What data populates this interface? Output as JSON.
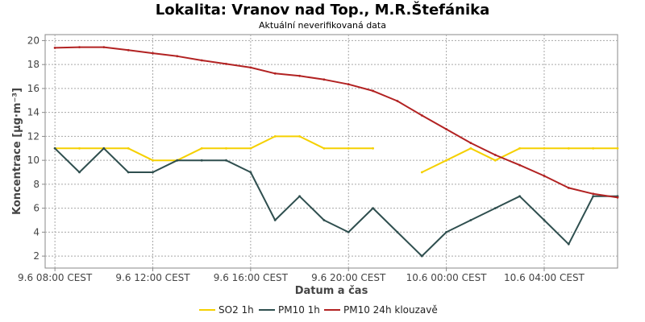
{
  "chart_data": {
    "type": "line",
    "title": "Lokalita: Vranov nad Top., M.R.Štefánika",
    "subtitle": "Aktuální neverifikovaná data",
    "xlabel": "Datum a čas",
    "ylabel": "Koncentrace [µg·m⁻³]",
    "ylim": [
      1,
      20.5
    ],
    "yticks": [
      2,
      4,
      6,
      8,
      10,
      12,
      14,
      16,
      18,
      20
    ],
    "xlim": [
      7.6,
      31.0
    ],
    "xticks": [
      {
        "x": 8,
        "label": "9.6 08:00 CEST"
      },
      {
        "x": 12,
        "label": "9.6 12:00 CEST"
      },
      {
        "x": 16,
        "label": "9.6 16:00 CEST"
      },
      {
        "x": 20,
        "label": "9.6 20:00 CEST"
      },
      {
        "x": 24,
        "label": "10.6 00:00 CEST"
      },
      {
        "x": 28,
        "label": "10.6 04:00 CEST"
      }
    ],
    "grid": true,
    "legend_position": "bottom",
    "series": [
      {
        "name": "SO2 1h",
        "color": "#f5d000",
        "points": [
          [
            8,
            11
          ],
          [
            9,
            11
          ],
          [
            10,
            11
          ],
          [
            11,
            11
          ],
          [
            12,
            10
          ],
          [
            13,
            10
          ],
          [
            14,
            11
          ],
          [
            15,
            11
          ],
          [
            16,
            11
          ],
          [
            17,
            12
          ],
          [
            18,
            12
          ],
          [
            19,
            11
          ],
          [
            20,
            11
          ],
          [
            21,
            11
          ],
          [
            22,
            null
          ],
          [
            23,
            9
          ],
          [
            24,
            10
          ],
          [
            25,
            11
          ],
          [
            26,
            10
          ],
          [
            27,
            11
          ],
          [
            28,
            11
          ],
          [
            29,
            11
          ],
          [
            30,
            11
          ],
          [
            31,
            11
          ]
        ]
      },
      {
        "name": "PM10 1h",
        "color": "#2f4f4f",
        "points": [
          [
            8,
            11
          ],
          [
            9,
            9
          ],
          [
            10,
            11
          ],
          [
            11,
            9
          ],
          [
            12,
            9
          ],
          [
            13,
            10
          ],
          [
            14,
            10
          ],
          [
            15,
            10
          ],
          [
            16,
            9
          ],
          [
            17,
            5
          ],
          [
            18,
            7
          ],
          [
            19,
            5
          ],
          [
            20,
            4
          ],
          [
            21,
            6
          ],
          [
            22,
            4
          ],
          [
            23,
            2
          ],
          [
            24,
            4
          ],
          [
            25,
            5
          ],
          [
            26,
            6
          ],
          [
            27,
            7
          ],
          [
            28,
            5
          ],
          [
            29,
            3
          ],
          [
            30,
            7
          ],
          [
            31,
            7
          ]
        ]
      },
      {
        "name": "PM10 24h klouzavě",
        "color": "#b22222",
        "points": [
          [
            8,
            19.4
          ],
          [
            9,
            19.45
          ],
          [
            10,
            19.45
          ],
          [
            11,
            19.2
          ],
          [
            12,
            18.95
          ],
          [
            13,
            18.7
          ],
          [
            14,
            18.35
          ],
          [
            15,
            18.05
          ],
          [
            16,
            17.75
          ],
          [
            17,
            17.25
          ],
          [
            18,
            17.05
          ],
          [
            19,
            16.75
          ],
          [
            20,
            16.35
          ],
          [
            21,
            15.8
          ],
          [
            22,
            14.95
          ],
          [
            23,
            13.75
          ],
          [
            24,
            12.6
          ],
          [
            25,
            11.45
          ],
          [
            26,
            10.45
          ],
          [
            27,
            9.6
          ],
          [
            28,
            8.7
          ],
          [
            29,
            7.7
          ],
          [
            30,
            7.2
          ],
          [
            31,
            6.9
          ]
        ]
      }
    ]
  }
}
